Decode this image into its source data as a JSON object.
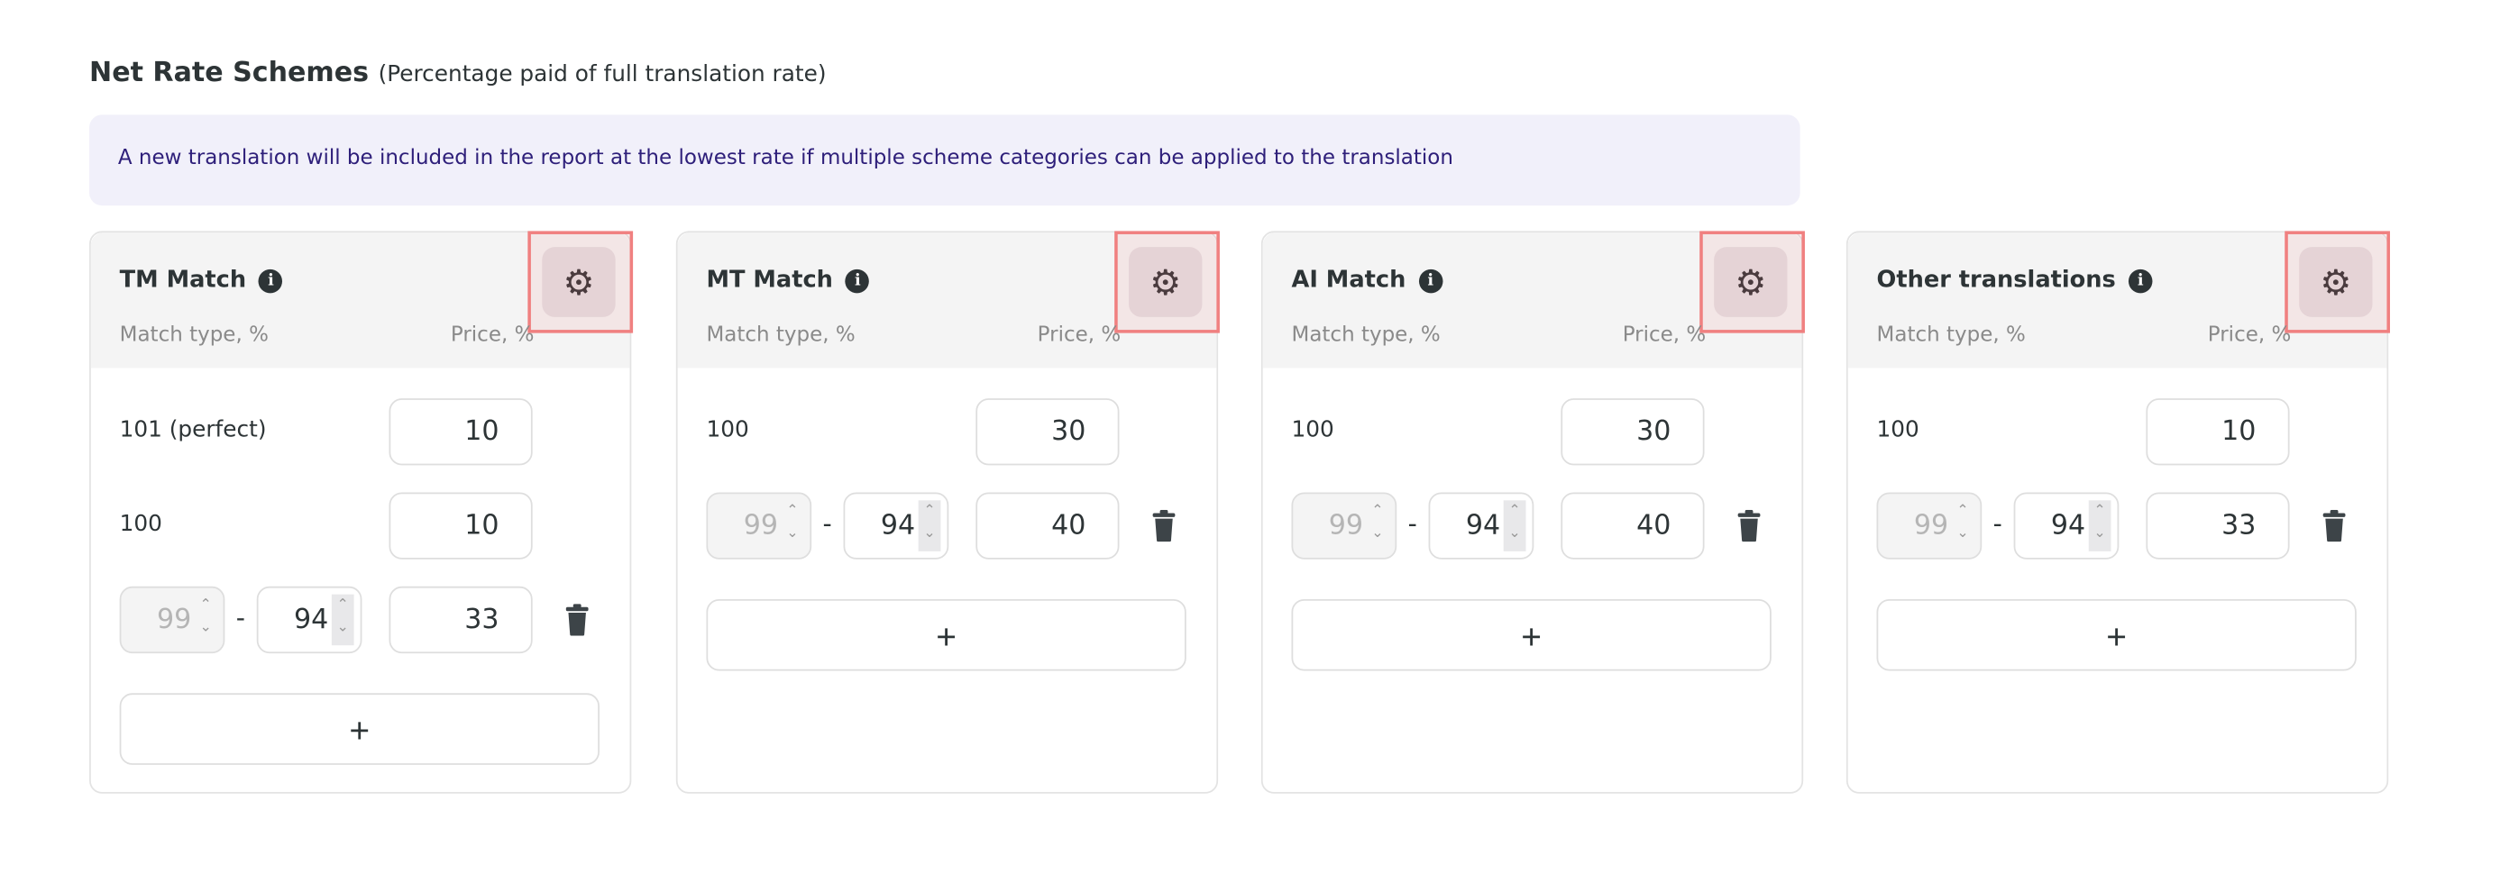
{
  "header": {
    "title": "Net Rate Schemes",
    "subtitle": "(Percentage paid of full translation rate)"
  },
  "banner": {
    "text": "A new translation will be included in the report at the lowest rate if multiple scheme categories can be applied to the translation"
  },
  "colors": {
    "banner_bg": "#f1f0fa",
    "banner_text": "#2e1f7a",
    "highlight": "#f08080",
    "gear_button_bg": "#e5d3d6"
  },
  "cards": [
    {
      "title": "TM Match",
      "col_match": "Match type, %",
      "col_price": "Price, %",
      "fixed_rows": [
        {
          "label": "101 (perfect)",
          "price": "10"
        },
        {
          "label": "100",
          "price": "10"
        }
      ],
      "range_rows": [
        {
          "from": "99",
          "to": "94",
          "separator": "-",
          "price": "33"
        }
      ],
      "add_label": "+"
    },
    {
      "title": "MT Match",
      "col_match": "Match type, %",
      "col_price": "Price, %",
      "fixed_rows": [
        {
          "label": "100",
          "price": "30"
        }
      ],
      "range_rows": [
        {
          "from": "99",
          "to": "94",
          "separator": "-",
          "price": "40"
        }
      ],
      "add_label": "+"
    },
    {
      "title": "AI Match",
      "col_match": "Match type, %",
      "col_price": "Price, %",
      "fixed_rows": [
        {
          "label": "100",
          "price": "30"
        }
      ],
      "range_rows": [
        {
          "from": "99",
          "to": "94",
          "separator": "-",
          "price": "40"
        }
      ],
      "add_label": "+"
    },
    {
      "title": "Other translations",
      "col_match": "Match type, %",
      "col_price": "Price, %",
      "fixed_rows": [
        {
          "label": "100",
          "price": "10"
        }
      ],
      "range_rows": [
        {
          "from": "99",
          "to": "94",
          "separator": "-",
          "price": "33"
        }
      ],
      "add_label": "+"
    }
  ]
}
